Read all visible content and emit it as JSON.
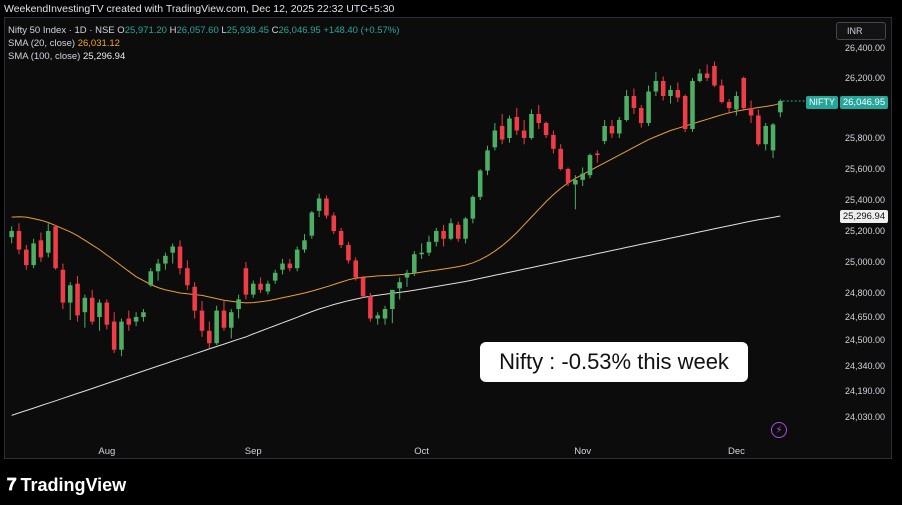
{
  "header": {
    "text": "WeekendInvestingTV created with TradingView.com, Dec 12, 2025 22:32 UTC+5:30"
  },
  "legend": {
    "symbol": "Nifty 50 Index · 1D · NSE",
    "ohlc": [
      {
        "key": "O",
        "value": "25,971.20"
      },
      {
        "key": "H",
        "value": "26,057.60"
      },
      {
        "key": "L",
        "value": "25,938.45"
      },
      {
        "key": "C",
        "value": "26,046.95"
      }
    ],
    "change": "+148.40 (+0.57%)",
    "sma20_label": "SMA (20, close)",
    "sma20_value": "26,031.12",
    "sma100_label": "SMA (100, close)",
    "sma100_value": "25,296.94"
  },
  "currency_button": "INR",
  "price_labels": {
    "nifty_name": "NIFTY",
    "nifty_price": "26,046.95",
    "sma100_price": "25,296.94"
  },
  "annotation": "Nifty : -0.53% this week",
  "brand": {
    "logo": "𝟕",
    "name": "TradingView"
  },
  "colors": {
    "up": "#26a69a",
    "down": "#ef3c46",
    "up_candle": "#4caf63",
    "sma20": "#e8a030",
    "sma100": "#e0e0e0",
    "background": "#0c0c0c"
  },
  "chart_data": {
    "type": "candlestick",
    "y_ticks": [
      "26,400.00",
      "26,200.00",
      "25,800.00",
      "25,600.00",
      "25,400.00",
      "25,200.00",
      "25,000.00",
      "24,800.00",
      "24,650.00",
      "24,500.00",
      "24,340.00",
      "24,190.00",
      "24,030.00"
    ],
    "y_tick_values": [
      26400,
      26200,
      25800,
      25600,
      25400,
      25200,
      25000,
      24800,
      24650,
      24500,
      24340,
      24190,
      24030
    ],
    "x_labels": [
      "Aug",
      "Sep",
      "Oct",
      "Nov",
      "Dec"
    ],
    "x_label_index": [
      13,
      33,
      56,
      78,
      99
    ],
    "candles": [
      {
        "o": 25160,
        "h": 25230,
        "l": 25120,
        "c": 25200
      },
      {
        "o": 25200,
        "h": 25250,
        "l": 25050,
        "c": 25080
      },
      {
        "o": 25080,
        "h": 25110,
        "l": 24950,
        "c": 24980
      },
      {
        "o": 24980,
        "h": 25150,
        "l": 24960,
        "c": 25120
      },
      {
        "o": 25140,
        "h": 25190,
        "l": 25000,
        "c": 25030
      },
      {
        "o": 25060,
        "h": 25250,
        "l": 25030,
        "c": 25200
      },
      {
        "o": 25230,
        "h": 25240,
        "l": 24950,
        "c": 24960
      },
      {
        "o": 24950,
        "h": 24990,
        "l": 24700,
        "c": 24740
      },
      {
        "o": 24740,
        "h": 24870,
        "l": 24630,
        "c": 24850
      },
      {
        "o": 24860,
        "h": 24910,
        "l": 24620,
        "c": 24660
      },
      {
        "o": 24680,
        "h": 24790,
        "l": 24580,
        "c": 24770
      },
      {
        "o": 24770,
        "h": 24820,
        "l": 24600,
        "c": 24620
      },
      {
        "o": 24650,
        "h": 24760,
        "l": 24560,
        "c": 24740
      },
      {
        "o": 24740,
        "h": 24760,
        "l": 24570,
        "c": 24600
      },
      {
        "o": 24620,
        "h": 24680,
        "l": 24420,
        "c": 24440
      },
      {
        "o": 24440,
        "h": 24640,
        "l": 24400,
        "c": 24620
      },
      {
        "o": 24640,
        "h": 24690,
        "l": 24560,
        "c": 24600
      },
      {
        "o": 24620,
        "h": 24680,
        "l": 24590,
        "c": 24650
      },
      {
        "o": 24650,
        "h": 24700,
        "l": 24620,
        "c": 24680
      },
      {
        "o": 24850,
        "h": 24960,
        "l": 24840,
        "c": 24940
      },
      {
        "o": 24940,
        "h": 25020,
        "l": 24880,
        "c": 24990
      },
      {
        "o": 24990,
        "h": 25060,
        "l": 24950,
        "c": 25040
      },
      {
        "o": 25060,
        "h": 25120,
        "l": 24990,
        "c": 25100
      },
      {
        "o": 25100,
        "h": 25140,
        "l": 24920,
        "c": 24960
      },
      {
        "o": 24960,
        "h": 25010,
        "l": 24820,
        "c": 24850
      },
      {
        "o": 24840,
        "h": 24870,
        "l": 24640,
        "c": 24690
      },
      {
        "o": 24690,
        "h": 24750,
        "l": 24520,
        "c": 24560
      },
      {
        "o": 24560,
        "h": 24620,
        "l": 24450,
        "c": 24480
      },
      {
        "o": 24480,
        "h": 24720,
        "l": 24470,
        "c": 24690
      },
      {
        "o": 24690,
        "h": 24750,
        "l": 24560,
        "c": 24580
      },
      {
        "o": 24580,
        "h": 24700,
        "l": 24510,
        "c": 24680
      },
      {
        "o": 24700,
        "h": 24790,
        "l": 24640,
        "c": 24760
      },
      {
        "o": 24960,
        "h": 25000,
        "l": 24760,
        "c": 24790
      },
      {
        "o": 24790,
        "h": 24880,
        "l": 24770,
        "c": 24860
      },
      {
        "o": 24860,
        "h": 24900,
        "l": 24800,
        "c": 24820
      },
      {
        "o": 24810,
        "h": 24880,
        "l": 24790,
        "c": 24860
      },
      {
        "o": 24880,
        "h": 24950,
        "l": 24860,
        "c": 24930
      },
      {
        "o": 24950,
        "h": 25020,
        "l": 24920,
        "c": 24990
      },
      {
        "o": 24990,
        "h": 25020,
        "l": 24940,
        "c": 24960
      },
      {
        "o": 24960,
        "h": 25100,
        "l": 24940,
        "c": 25080
      },
      {
        "o": 25080,
        "h": 25180,
        "l": 25060,
        "c": 25140
      },
      {
        "o": 25170,
        "h": 25330,
        "l": 25150,
        "c": 25320
      },
      {
        "o": 25330,
        "h": 25440,
        "l": 25290,
        "c": 25410
      },
      {
        "o": 25410,
        "h": 25430,
        "l": 25280,
        "c": 25300
      },
      {
        "o": 25300,
        "h": 25320,
        "l": 25180,
        "c": 25200
      },
      {
        "o": 25200,
        "h": 25220,
        "l": 25090,
        "c": 25110
      },
      {
        "o": 25110,
        "h": 25130,
        "l": 24990,
        "c": 25010
      },
      {
        "o": 25010,
        "h": 25030,
        "l": 24880,
        "c": 24900
      },
      {
        "o": 24900,
        "h": 24910,
        "l": 24770,
        "c": 24780
      },
      {
        "o": 24780,
        "h": 24800,
        "l": 24620,
        "c": 24640
      },
      {
        "o": 24640,
        "h": 24680,
        "l": 24600,
        "c": 24660
      },
      {
        "o": 24640,
        "h": 24720,
        "l": 24600,
        "c": 24700
      },
      {
        "o": 24700,
        "h": 24820,
        "l": 24610,
        "c": 24820
      },
      {
        "o": 24830,
        "h": 24900,
        "l": 24760,
        "c": 24870
      },
      {
        "o": 24900,
        "h": 24950,
        "l": 24840,
        "c": 24930
      },
      {
        "o": 24930,
        "h": 25070,
        "l": 24910,
        "c": 25050
      },
      {
        "o": 25050,
        "h": 25120,
        "l": 25020,
        "c": 25060
      },
      {
        "o": 25060,
        "h": 25170,
        "l": 25040,
        "c": 25130
      },
      {
        "o": 25130,
        "h": 25220,
        "l": 25100,
        "c": 25200
      },
      {
        "o": 25200,
        "h": 25240,
        "l": 25100,
        "c": 25150
      },
      {
        "o": 25150,
        "h": 25280,
        "l": 25140,
        "c": 25250
      },
      {
        "o": 25240,
        "h": 25260,
        "l": 25130,
        "c": 25150
      },
      {
        "o": 25150,
        "h": 25290,
        "l": 25120,
        "c": 25280
      },
      {
        "o": 25280,
        "h": 25430,
        "l": 25250,
        "c": 25420
      },
      {
        "o": 25420,
        "h": 25600,
        "l": 25400,
        "c": 25590
      },
      {
        "o": 25590,
        "h": 25750,
        "l": 25560,
        "c": 25720
      },
      {
        "o": 25740,
        "h": 25900,
        "l": 25720,
        "c": 25850
      },
      {
        "o": 25880,
        "h": 25960,
        "l": 25760,
        "c": 25790
      },
      {
        "o": 25800,
        "h": 25950,
        "l": 25770,
        "c": 25930
      },
      {
        "o": 25940,
        "h": 26000,
        "l": 25820,
        "c": 25850
      },
      {
        "o": 25850,
        "h": 25920,
        "l": 25760,
        "c": 25800
      },
      {
        "o": 25800,
        "h": 25990,
        "l": 25790,
        "c": 25960
      },
      {
        "o": 25960,
        "h": 26020,
        "l": 25860,
        "c": 25900
      },
      {
        "o": 25900,
        "h": 25910,
        "l": 25800,
        "c": 25820
      },
      {
        "o": 25820,
        "h": 25850,
        "l": 25700,
        "c": 25730
      },
      {
        "o": 25730,
        "h": 25760,
        "l": 25590,
        "c": 25600
      },
      {
        "o": 25600,
        "h": 25610,
        "l": 25490,
        "c": 25510
      },
      {
        "o": 25500,
        "h": 25560,
        "l": 25340,
        "c": 25530
      },
      {
        "o": 25530,
        "h": 25610,
        "l": 25490,
        "c": 25570
      },
      {
        "o": 25560,
        "h": 25700,
        "l": 25540,
        "c": 25690
      },
      {
        "o": 25700,
        "h": 25720,
        "l": 25640,
        "c": 25690
      },
      {
        "o": 25780,
        "h": 25920,
        "l": 25760,
        "c": 25880
      },
      {
        "o": 25880,
        "h": 25920,
        "l": 25800,
        "c": 25830
      },
      {
        "o": 25830,
        "h": 25940,
        "l": 25800,
        "c": 25920
      },
      {
        "o": 25920,
        "h": 26120,
        "l": 25910,
        "c": 26080
      },
      {
        "o": 26080,
        "h": 26130,
        "l": 25960,
        "c": 26000
      },
      {
        "o": 26000,
        "h": 26020,
        "l": 25870,
        "c": 25900
      },
      {
        "o": 25900,
        "h": 26150,
        "l": 25880,
        "c": 26110
      },
      {
        "o": 26110,
        "h": 26240,
        "l": 26080,
        "c": 26180
      },
      {
        "o": 26180,
        "h": 26210,
        "l": 26050,
        "c": 26080
      },
      {
        "o": 26080,
        "h": 26150,
        "l": 26030,
        "c": 26120
      },
      {
        "o": 26120,
        "h": 26170,
        "l": 26040,
        "c": 26070
      },
      {
        "o": 26080,
        "h": 26090,
        "l": 25840,
        "c": 25860
      },
      {
        "o": 25860,
        "h": 26200,
        "l": 25840,
        "c": 26180
      },
      {
        "o": 26180,
        "h": 26260,
        "l": 26170,
        "c": 26230
      },
      {
        "o": 26230,
        "h": 26290,
        "l": 26180,
        "c": 26200
      },
      {
        "o": 26280,
        "h": 26310,
        "l": 26140,
        "c": 26150
      },
      {
        "o": 26150,
        "h": 26190,
        "l": 26030,
        "c": 26040
      },
      {
        "o": 26040,
        "h": 26060,
        "l": 25960,
        "c": 26000
      },
      {
        "o": 25990,
        "h": 26110,
        "l": 25950,
        "c": 26080
      },
      {
        "o": 26200,
        "h": 26210,
        "l": 25980,
        "c": 26000
      },
      {
        "o": 26000,
        "h": 26050,
        "l": 25900,
        "c": 25950
      },
      {
        "o": 25950,
        "h": 25990,
        "l": 25750,
        "c": 25760
      },
      {
        "o": 25760,
        "h": 25900,
        "l": 25720,
        "c": 25880
      },
      {
        "o": 25720,
        "h": 25900,
        "l": 25670,
        "c": 25890
      },
      {
        "o": 25971.2,
        "h": 26057.6,
        "l": 25938.45,
        "c": 26046.95
      }
    ],
    "series": [
      {
        "name": "SMA (20, close)",
        "values": [
          25290,
          25292,
          25290,
          25280,
          25270,
          25255,
          25235,
          25215,
          25195,
          25170,
          25140,
          25110,
          25080,
          25045,
          25010,
          24975,
          24940,
          24905,
          24880,
          24855,
          24835,
          24820,
          24810,
          24800,
          24795,
          24790,
          24785,
          24775,
          24765,
          24755,
          24748,
          24742,
          24738,
          24740,
          24745,
          24752,
          24760,
          24770,
          24780,
          24790,
          24800,
          24812,
          24826,
          24840,
          24855,
          24870,
          24885,
          24895,
          24902,
          24906,
          24910,
          24912,
          24915,
          24918,
          24922,
          24928,
          24935,
          24942,
          24948,
          24955,
          24962,
          24970,
          24980,
          24995,
          25015,
          25040,
          25070,
          25105,
          25145,
          25190,
          25240,
          25290,
          25340,
          25390,
          25435,
          25475,
          25510,
          25540,
          25565,
          25590,
          25615,
          25640,
          25665,
          25690,
          25715,
          25740,
          25765,
          25790,
          25810,
          25830,
          25850,
          25865,
          25880,
          25895,
          25910,
          25925,
          25940,
          25955,
          25968,
          25978,
          25988,
          25995,
          26003,
          26010,
          26018,
          26031.12
        ]
      },
      {
        "name": "SMA (100, close)",
        "values": [
          24040,
          24055,
          24070,
          24085,
          24100,
          24115,
          24130,
          24145,
          24160,
          24175,
          24190,
          24205,
          24220,
          24235,
          24250,
          24265,
          24280,
          24295,
          24310,
          24325,
          24340,
          24355,
          24370,
          24385,
          24400,
          24415,
          24430,
          24445,
          24460,
          24475,
          24490,
          24505,
          24520,
          24540,
          24558,
          24576,
          24594,
          24612,
          24630,
          24648,
          24666,
          24684,
          24700,
          24714,
          24728,
          24740,
          24752,
          24762,
          24772,
          24780,
          24786,
          24792,
          24798,
          24804,
          24810,
          24818,
          24826,
          24834,
          24842,
          24850,
          24858,
          24866,
          24874,
          24884,
          24894,
          24904,
          24914,
          24924,
          24934,
          24944,
          24954,
          24964,
          24974,
          24984,
          24994,
          25004,
          25014,
          25024,
          25034,
          25044,
          25054,
          25064,
          25074,
          25084,
          25094,
          25104,
          25114,
          25124,
          25134,
          25144,
          25154,
          25164,
          25174,
          25184,
          25194,
          25204,
          25214,
          25224,
          25234,
          25244,
          25254,
          25264,
          25272,
          25280,
          25288,
          25296.94
        ]
      }
    ],
    "ylim": [
      23950,
      26550
    ]
  }
}
